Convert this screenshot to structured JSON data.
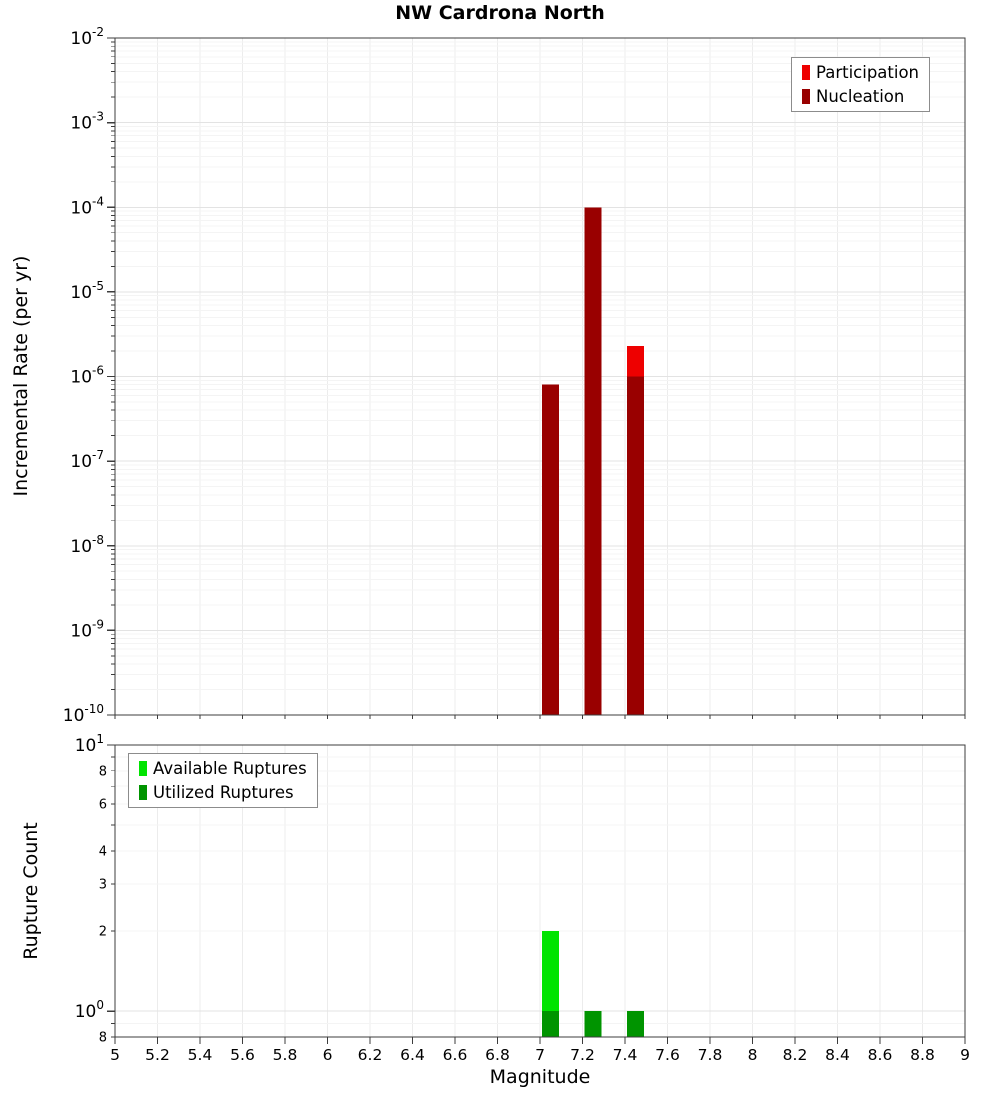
{
  "title": "NW Cardrona North",
  "colors": {
    "axis": "#3c3c3c",
    "grid_vertical": "#ececec",
    "grid_major": "#e3e3e3",
    "grid_minor": "#f4f4f4",
    "tick_label": "#000000"
  },
  "chart_data": [
    {
      "name": "incremental-rate-plot",
      "type": "bar",
      "title": "NW Cardrona North",
      "ylabel": "Incremental Rate (per yr)",
      "xlabel": "",
      "yscale": "log",
      "ylim": [
        1e-10,
        0.01
      ],
      "xlim": [
        5,
        9
      ],
      "grid": true,
      "bar_width": 0.08,
      "x_ticks": [
        "5",
        "5.2",
        "5.4",
        "5.6",
        "5.8",
        "6",
        "6.2",
        "6.4",
        "6.6",
        "6.8",
        "7",
        "7.2",
        "7.4",
        "7.6",
        "7.8",
        "8",
        "8.2",
        "8.4",
        "8.6",
        "8.8",
        "9"
      ],
      "y_ticks": {
        "major_exponents": [
          -2,
          -3,
          -4,
          -5,
          -6,
          -7,
          -8,
          -9,
          -10
        ],
        "minor_labeled": []
      },
      "legend_position": "top-right",
      "series": [
        {
          "name": "Participation",
          "color": "#ee0000",
          "x": [
            7.05,
            7.25,
            7.45
          ],
          "values": [
            8e-07,
            0.0001,
            2.3e-06
          ]
        },
        {
          "name": "Nucleation",
          "color": "#990000",
          "x": [
            7.05,
            7.25,
            7.45
          ],
          "values": [
            8e-07,
            0.0001,
            1e-06
          ]
        }
      ]
    },
    {
      "name": "rupture-count-plot",
      "type": "bar",
      "title": "",
      "ylabel": "Rupture Count",
      "xlabel": "Magnitude",
      "yscale": "log",
      "ylim": [
        0.8,
        10
      ],
      "xlim": [
        5,
        9
      ],
      "grid": true,
      "bar_width": 0.08,
      "x_ticks": [
        "5",
        "5.2",
        "5.4",
        "5.6",
        "5.8",
        "6",
        "6.2",
        "6.4",
        "6.6",
        "6.8",
        "7",
        "7.2",
        "7.4",
        "7.6",
        "7.8",
        "8",
        "8.2",
        "8.4",
        "8.6",
        "8.8",
        "9"
      ],
      "y_ticks": {
        "major_exponents": [
          1,
          0
        ],
        "minor_labeled": [
          {
            "value": 8,
            "label": "8"
          },
          {
            "value": 6,
            "label": "6"
          },
          {
            "value": 4,
            "label": "4"
          },
          {
            "value": 3,
            "label": "3"
          },
          {
            "value": 2,
            "label": "2"
          },
          {
            "value": 0.8,
            "label": "8"
          }
        ]
      },
      "legend_position": "top-left",
      "series": [
        {
          "name": "Available Ruptures",
          "color": "#00e400",
          "x": [
            7.05,
            7.25,
            7.45
          ],
          "values": [
            2,
            1,
            1
          ]
        },
        {
          "name": "Utilized Ruptures",
          "color": "#009400",
          "x": [
            7.05,
            7.25,
            7.45
          ],
          "values": [
            1,
            1,
            1
          ]
        }
      ]
    }
  ]
}
